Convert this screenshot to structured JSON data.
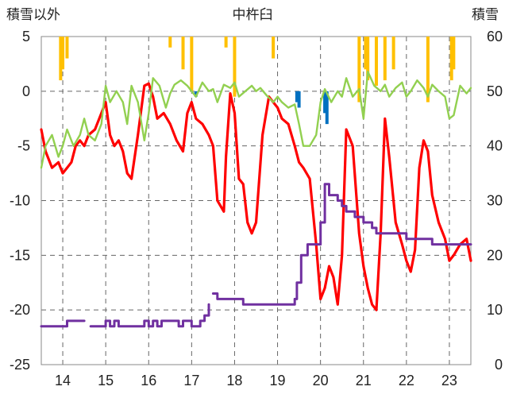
{
  "chart_data": {
    "type": "line",
    "title": "中杵臼",
    "left_axis_label": "積雪以外",
    "right_axis_label": "積雪",
    "left_ylim": [
      -25,
      5
    ],
    "left_ticks": [
      5,
      0,
      -5,
      -10,
      -15,
      -20,
      -25
    ],
    "right_ylim": [
      0,
      60
    ],
    "right_ticks": [
      60,
      50,
      40,
      30,
      20,
      10,
      0
    ],
    "xlim": [
      13.5,
      23.5
    ],
    "x_tick_labels": [
      "14",
      "15",
      "16",
      "17",
      "18",
      "19",
      "20",
      "21",
      "22",
      "23"
    ],
    "x_tick_values": [
      14,
      15,
      16,
      17,
      18,
      19,
      20,
      21,
      22,
      23
    ],
    "series": [
      {
        "axis": "left",
        "style": "line",
        "color": "#ff0000",
        "x": [
          13.5,
          13.6,
          13.75,
          13.9,
          14.0,
          14.1,
          14.2,
          14.3,
          14.4,
          14.5,
          14.6,
          14.75,
          14.9,
          15.0,
          15.1,
          15.2,
          15.3,
          15.4,
          15.5,
          15.6,
          15.75,
          15.9,
          16.0,
          16.1,
          16.2,
          16.35,
          16.5,
          16.65,
          16.8,
          16.9,
          17.0,
          17.1,
          17.25,
          17.4,
          17.5,
          17.6,
          17.75,
          17.8,
          17.9,
          18.0,
          18.1,
          18.2,
          18.3,
          18.4,
          18.5,
          18.65,
          18.8,
          18.9,
          19.0,
          19.1,
          19.25,
          19.4,
          19.5,
          19.6,
          19.75,
          19.9,
          20.0,
          20.1,
          20.2,
          20.3,
          20.4,
          20.5,
          20.6,
          20.75,
          20.9,
          21.0,
          21.1,
          21.2,
          21.3,
          21.4,
          21.5,
          21.6,
          21.75,
          21.9,
          22.0,
          22.1,
          22.2,
          22.3,
          22.4,
          22.5,
          22.6,
          22.75,
          22.9,
          23.0,
          23.1,
          23.25,
          23.4,
          23.5
        ],
        "values": [
          -3.5,
          -5.5,
          -7,
          -6.5,
          -7.5,
          -7,
          -6.5,
          -5,
          -4.5,
          -5,
          -4,
          -3.5,
          -2,
          -1,
          -4,
          -5,
          -4.5,
          -5.5,
          -7.5,
          -8,
          -4,
          0.5,
          0.7,
          -0.5,
          -2.5,
          -2,
          -3,
          -4.5,
          -5.5,
          -2,
          -1,
          -2.5,
          -3,
          -4,
          -5,
          -10,
          -11,
          -6,
          -0.2,
          -2,
          -8,
          -8.5,
          -12,
          -13,
          -12,
          -4,
          -0.5,
          -1,
          -1.5,
          -2.5,
          -3,
          -5,
          -6.5,
          -7,
          -8,
          -14,
          -19,
          -18,
          -16,
          -17,
          -19.5,
          -15,
          -3.5,
          -5,
          -13,
          -16,
          -18,
          -19.5,
          -20,
          -13,
          -2.5,
          -6,
          -12,
          -14,
          -15.5,
          -16.5,
          -14.5,
          -7,
          -4.5,
          -5.5,
          -9.5,
          -12,
          -13.5,
          -15.5,
          -15,
          -14,
          -13.5,
          -15.5
        ]
      },
      {
        "axis": "left",
        "style": "line",
        "color": "#92d050",
        "x": [
          13.5,
          13.6,
          13.75,
          13.9,
          14.0,
          14.1,
          14.25,
          14.4,
          14.5,
          14.6,
          14.75,
          14.9,
          15.0,
          15.1,
          15.25,
          15.4,
          15.5,
          15.6,
          15.75,
          15.9,
          16.0,
          16.1,
          16.25,
          16.4,
          16.5,
          16.6,
          16.75,
          16.9,
          17.0,
          17.1,
          17.25,
          17.4,
          17.5,
          17.6,
          17.75,
          17.9,
          18.0,
          18.1,
          18.25,
          18.4,
          18.5,
          18.6,
          18.75,
          18.9,
          19.0,
          19.1,
          19.25,
          19.4,
          19.5,
          19.6,
          19.75,
          19.9,
          20.0,
          20.1,
          20.25,
          20.4,
          20.5,
          20.6,
          20.75,
          20.9,
          21.0,
          21.1,
          21.25,
          21.4,
          21.5,
          21.6,
          21.75,
          21.9,
          22.0,
          22.1,
          22.25,
          22.4,
          22.5,
          22.6,
          22.75,
          22.9,
          23.0,
          23.1,
          23.25,
          23.4,
          23.5
        ],
        "values": [
          -7,
          -5,
          -4,
          -6,
          -5,
          -3.5,
          -5,
          -4,
          -2.5,
          -4,
          -4.5,
          -3,
          0.5,
          -1,
          0,
          -1,
          -3,
          0.5,
          -1,
          -4.5,
          -2,
          1.2,
          0.5,
          -1.5,
          -0.2,
          0.6,
          1,
          0.5,
          0,
          -0.5,
          0.8,
          0,
          0.2,
          -1,
          0.6,
          0.3,
          0.8,
          -0.5,
          0,
          0.5,
          0,
          0.3,
          -0.4,
          -1,
          -0.5,
          -1,
          -1.5,
          -1.2,
          -3,
          -5,
          -5,
          -4,
          -1,
          0.2,
          -1,
          0,
          -0.5,
          1.2,
          -0.5,
          0.2,
          -2.5,
          1.8,
          0.5,
          0,
          0.6,
          -0.5,
          0.3,
          0.8,
          -0.5,
          0,
          1,
          0.3,
          -0.5,
          0.6,
          0,
          -0.5,
          -2.5,
          -2.2,
          0.5,
          -0.2,
          0.3
        ]
      },
      {
        "axis": "right",
        "style": "step",
        "color": "#7030a0",
        "x": [
          13.5,
          13.6,
          13.8,
          14.0,
          14.1,
          14.2,
          14.3,
          14.5,
          14.55,
          14.65,
          14.9,
          15.0,
          15.1,
          15.2,
          15.3,
          15.5,
          15.8,
          15.9,
          16.0,
          16.1,
          16.2,
          16.3,
          16.5,
          16.7,
          16.8,
          17.0,
          17.1,
          17.2,
          17.3,
          17.4,
          17.45,
          17.5,
          17.6,
          17.8,
          18.0,
          18.2,
          18.4,
          18.6,
          19.0,
          19.2,
          19.4,
          19.45,
          19.55,
          19.7,
          19.95,
          20.0,
          20.1,
          20.2,
          20.4,
          20.5,
          20.6,
          20.7,
          20.8,
          21.0,
          21.1,
          21.2,
          21.3,
          21.45,
          21.8,
          22.0,
          22.2,
          22.4,
          22.6,
          22.8,
          23.0,
          23.5
        ],
        "values": [
          7,
          7,
          7,
          7,
          8,
          8,
          8,
          8,
          null,
          7,
          7,
          8,
          7,
          8,
          7,
          7,
          7,
          8,
          7,
          8,
          7,
          8,
          8,
          7,
          8,
          7,
          7,
          8,
          9,
          11,
          null,
          13,
          12,
          12,
          12,
          11,
          11,
          11,
          11,
          11,
          12,
          15,
          20,
          22,
          22,
          26,
          33,
          31,
          30,
          29,
          28,
          28,
          27,
          26,
          26,
          25,
          24,
          24,
          24,
          23,
          23,
          23,
          22,
          22,
          22,
          22
        ]
      }
    ],
    "bars": [
      {
        "axis": "left",
        "color": "#ffc000",
        "baseline": 5,
        "x": [
          13.95,
          14.0,
          14.1,
          16.5,
          16.8,
          17.0,
          17.8,
          18.0,
          18.9,
          20.9,
          21.05,
          21.1,
          21.3,
          21.5,
          21.7,
          22.5,
          23.05,
          23.1
        ],
        "values": [
          1,
          2,
          3,
          4,
          2,
          0,
          4,
          -0.5,
          3,
          -1,
          2,
          1,
          0.5,
          1,
          2,
          -1,
          1,
          2
        ]
      },
      {
        "axis": "left",
        "color": "#0070c0",
        "baseline": 0,
        "x": [
          17.1,
          19.45,
          19.5,
          20.1,
          20.15
        ],
        "values": [
          -0.5,
          -1,
          -1.5,
          -2,
          -3
        ]
      }
    ]
  }
}
